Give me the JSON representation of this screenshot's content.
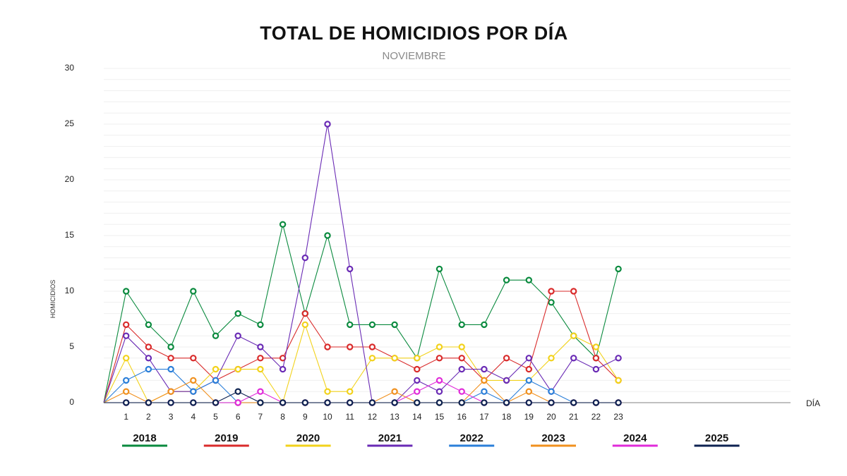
{
  "chart_data": {
    "type": "line",
    "title": "TOTAL DE HOMICIDIOS POR DÍA",
    "subtitle": "NOVIEMBRE",
    "xlabel": "DÍA",
    "ylabel": "HOMICIDIOS",
    "ylim": [
      0,
      30
    ],
    "y_ticks": [
      0,
      5,
      10,
      15,
      20,
      25,
      30
    ],
    "x_start": 0,
    "x_max": 33,
    "categories": [
      "1",
      "2",
      "3",
      "4",
      "5",
      "6",
      "7",
      "8",
      "9",
      "10",
      "11",
      "12",
      "13",
      "14",
      "15",
      "16",
      "17",
      "18",
      "19",
      "20",
      "21",
      "22",
      "23"
    ],
    "legend_position": "bottom",
    "series": [
      {
        "name": "2018",
        "color": "#0a8a3e",
        "values": [
          10,
          7,
          5,
          10,
          6,
          8,
          7,
          16,
          8,
          15,
          7,
          7,
          7,
          4,
          12,
          7,
          7,
          11,
          11,
          9,
          6,
          4,
          12
        ]
      },
      {
        "name": "2019",
        "color": "#d92b2b",
        "values": [
          7,
          5,
          4,
          4,
          2,
          3,
          4,
          4,
          8,
          5,
          5,
          5,
          4,
          3,
          4,
          4,
          2,
          4,
          3,
          10,
          10,
          4,
          2
        ]
      },
      {
        "name": "2020",
        "color": "#f2d21b",
        "values": [
          4,
          0,
          1,
          1,
          3,
          3,
          3,
          0,
          7,
          1,
          1,
          4,
          4,
          4,
          5,
          5,
          2,
          2,
          2,
          4,
          6,
          5,
          2
        ]
      },
      {
        "name": "2021",
        "color": "#6a2bb5",
        "values": [
          6,
          4,
          1,
          1,
          2,
          6,
          5,
          3,
          13,
          25,
          12,
          0,
          0,
          2,
          1,
          3,
          3,
          2,
          4,
          1,
          4,
          3,
          4
        ]
      },
      {
        "name": "2022",
        "color": "#2b7fd9",
        "values": [
          2,
          3,
          3,
          1,
          2,
          0,
          0,
          0,
          0,
          0,
          0,
          0,
          0,
          0,
          0,
          0,
          1,
          0,
          2,
          1,
          0,
          0,
          0
        ]
      },
      {
        "name": "2023",
        "color": "#f0901e",
        "values": [
          1,
          0,
          1,
          2,
          0,
          0,
          0,
          0,
          0,
          0,
          0,
          0,
          1,
          0,
          0,
          0,
          2,
          0,
          1,
          0,
          0,
          0,
          0
        ]
      },
      {
        "name": "2024",
        "color": "#e02bd9",
        "values": [
          0,
          0,
          0,
          0,
          0,
          0,
          1,
          0,
          0,
          0,
          0,
          0,
          0,
          1,
          2,
          1,
          0,
          0,
          0,
          0,
          0,
          0,
          0
        ]
      },
      {
        "name": "2025",
        "color": "#0d2250",
        "values": [
          0,
          0,
          0,
          0,
          0,
          1,
          0,
          0,
          0,
          0,
          0,
          0,
          0,
          0,
          0,
          0,
          0,
          0,
          0,
          0,
          0,
          0,
          0
        ]
      }
    ]
  }
}
